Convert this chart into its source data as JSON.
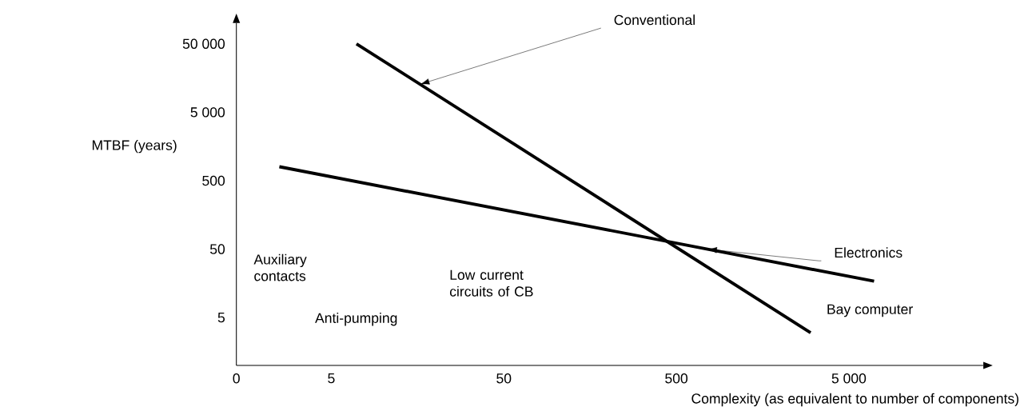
{
  "chart_data": {
    "type": "line",
    "xlabel": "Complexity (as equivalent to number of components)",
    "ylabel": "MTBF (years)",
    "log": "xy",
    "xlim": [
      0,
      30000
    ],
    "ylim": [
      1,
      100000
    ],
    "xticks": [
      0,
      5,
      50,
      500,
      {
        "value": 5000,
        "label": "5 000"
      }
    ],
    "yticks": [
      5,
      50,
      500,
      {
        "value": 5000,
        "label": "5 000"
      },
      {
        "value": 50000,
        "label": "50 000"
      }
    ],
    "marker": "none",
    "legend": false,
    "grid": false,
    "annotations": [
      "Auxiliary contacts",
      "Anti-pumping",
      "Low current circuits of CB",
      "Bay computer"
    ],
    "series": [
      {
        "name": "Conventional",
        "color": "#000000",
        "x": [
          7,
          3000
        ],
        "values": [
          50000,
          3
        ]
      },
      {
        "name": "Electronics",
        "color": "#000000",
        "x": [
          2.5,
          7000
        ],
        "values": [
          800,
          17
        ]
      }
    ]
  }
}
